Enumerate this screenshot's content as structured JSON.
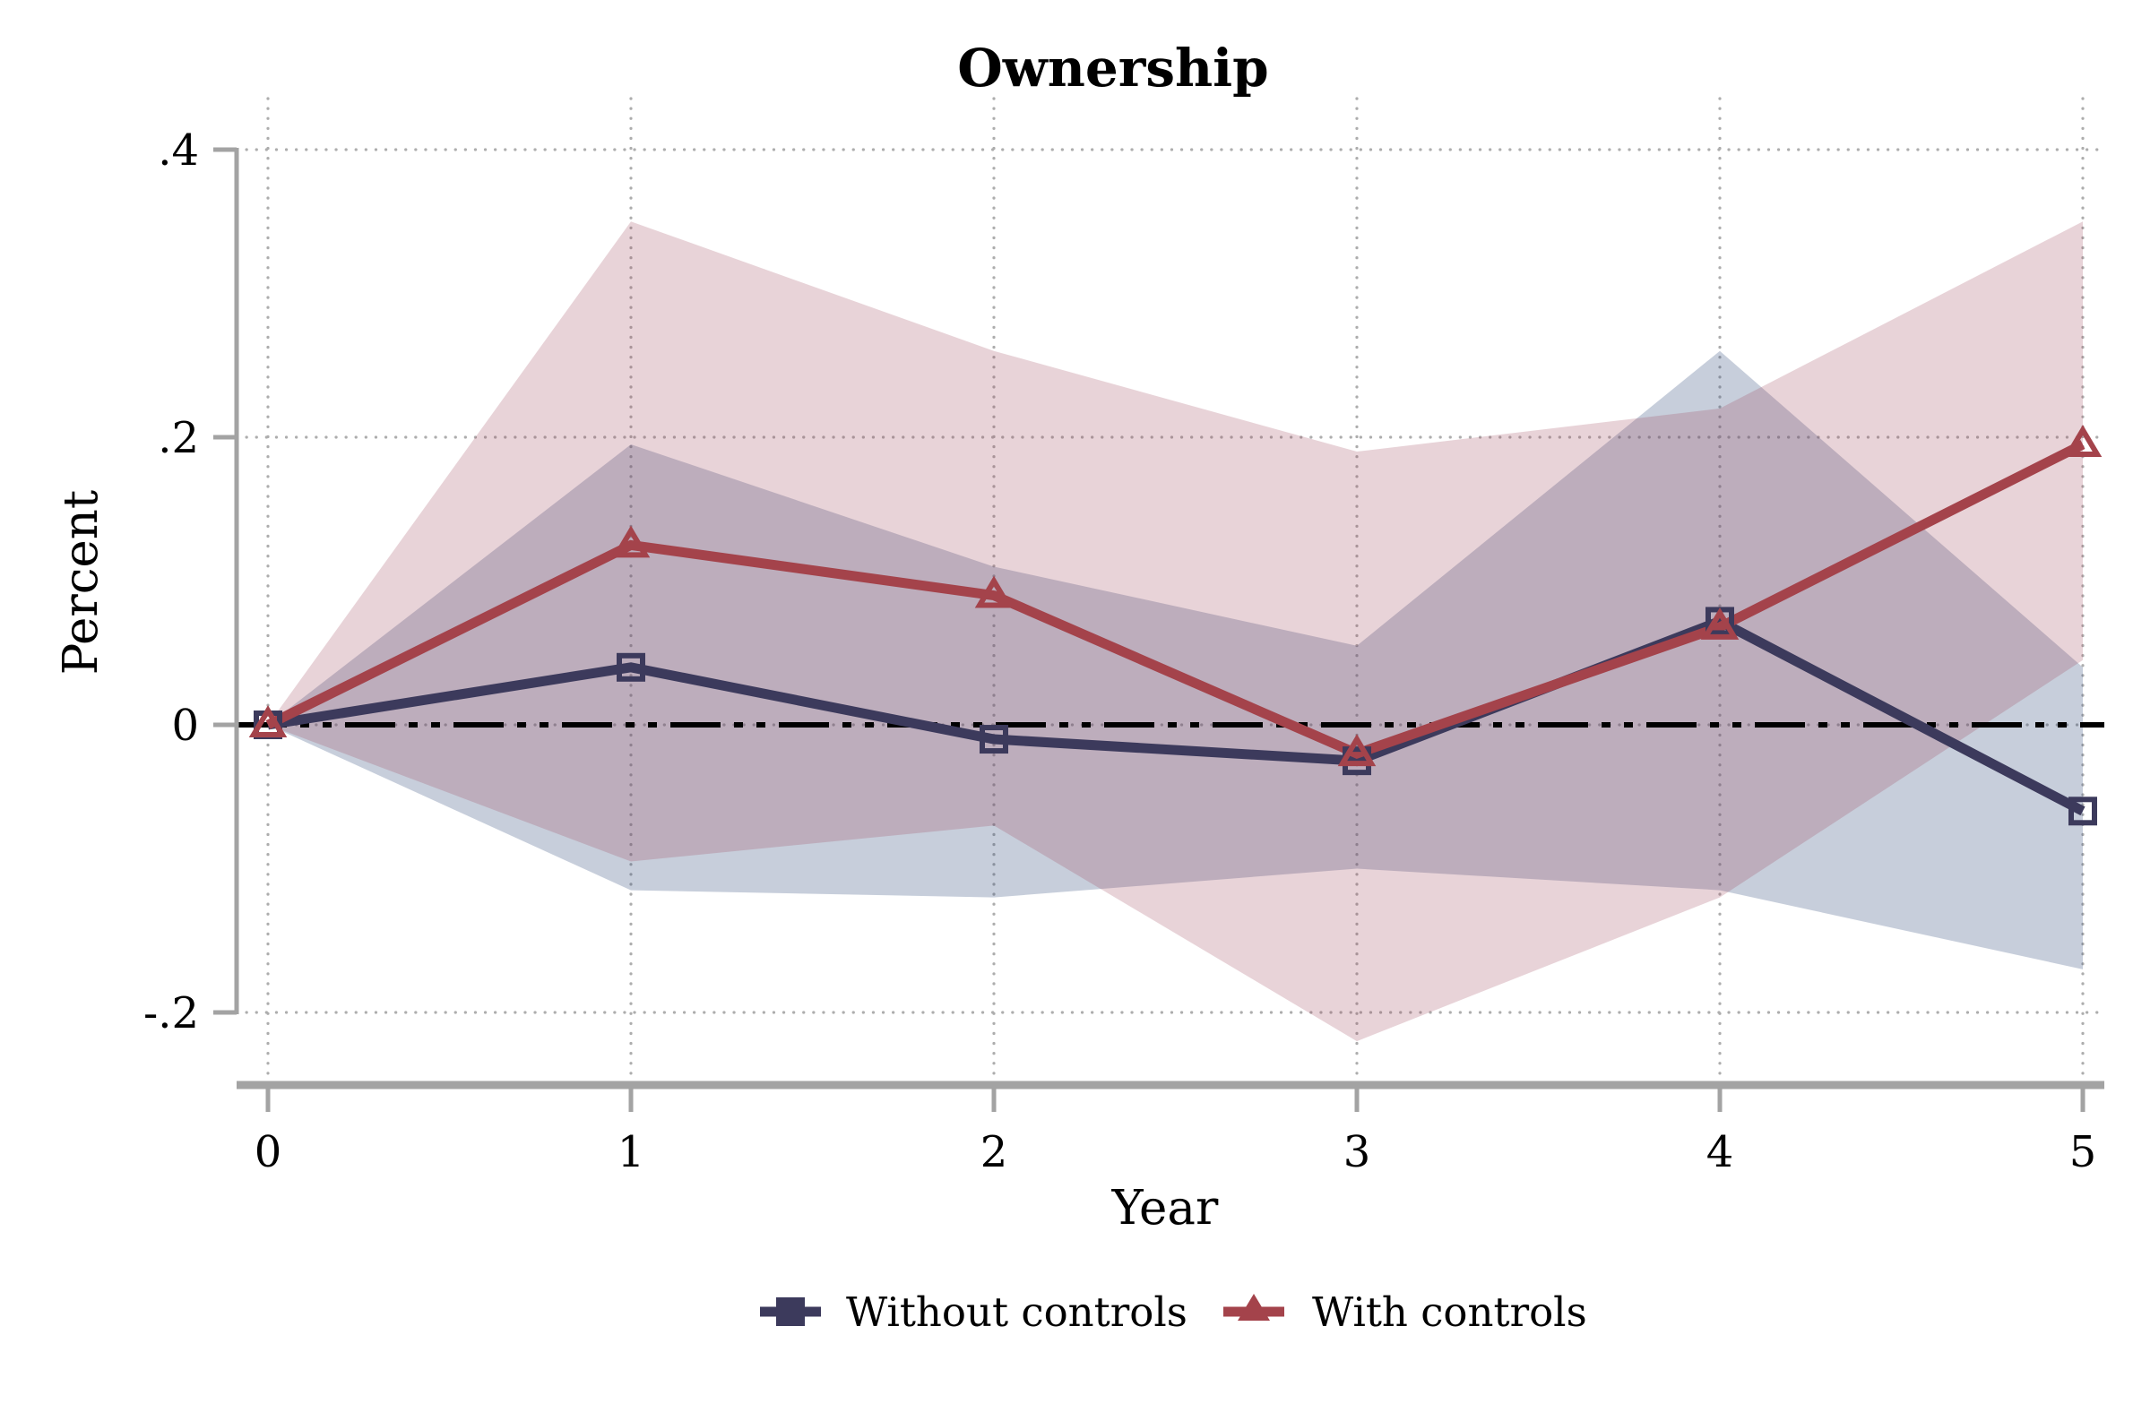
{
  "page": {
    "background": "#ffffff"
  },
  "chart_data": {
    "type": "line",
    "title": "Ownership",
    "xlabel": "Year",
    "ylabel": "Percent",
    "x": [
      0,
      1,
      2,
      3,
      4,
      5
    ],
    "x_tick_labels": [
      "0",
      "1",
      "2",
      "3",
      "4",
      "5"
    ],
    "y_ticks": [
      0.4,
      0.2,
      0,
      -0.2
    ],
    "y_tick_labels": [
      ".4",
      ".2",
      "0",
      "-.2"
    ],
    "xlim": [
      -0.09,
      5.06
    ],
    "ylim": [
      -0.25,
      0.45
    ],
    "grid": "dotted",
    "zero_reference_line": {
      "value": 0,
      "style": "dash-dot",
      "color": "#000000"
    },
    "legend_position": "bottom-center",
    "series": [
      {
        "name": "Without controls",
        "color": "#3C3A5C",
        "band_color": "#304A7A",
        "band_opacity": 0.27,
        "marker": "square-hollow",
        "values": [
          0,
          0.04,
          -0.01,
          -0.025,
          0.072,
          -0.06
        ],
        "ci_upper": [
          0,
          0.195,
          0.11,
          0.055,
          0.26,
          0.04
        ],
        "ci_lower": [
          0,
          -0.115,
          -0.12,
          -0.1,
          -0.115,
          -0.17
        ]
      },
      {
        "name": "With controls",
        "color": "#A4434B",
        "band_color": "#9F475C",
        "band_opacity": 0.24,
        "marker": "triangle-hollow",
        "values": [
          0,
          0.125,
          0.09,
          -0.02,
          0.068,
          0.195
        ],
        "ci_upper": [
          0,
          0.35,
          0.26,
          0.19,
          0.22,
          0.35
        ],
        "ci_lower": [
          0,
          -0.095,
          -0.07,
          -0.22,
          -0.12,
          0.045
        ]
      }
    ],
    "colors": {
      "grid": "#ADADAD",
      "axis": "#A3A3A3",
      "text": "#000000",
      "background": "#ffffff"
    }
  }
}
